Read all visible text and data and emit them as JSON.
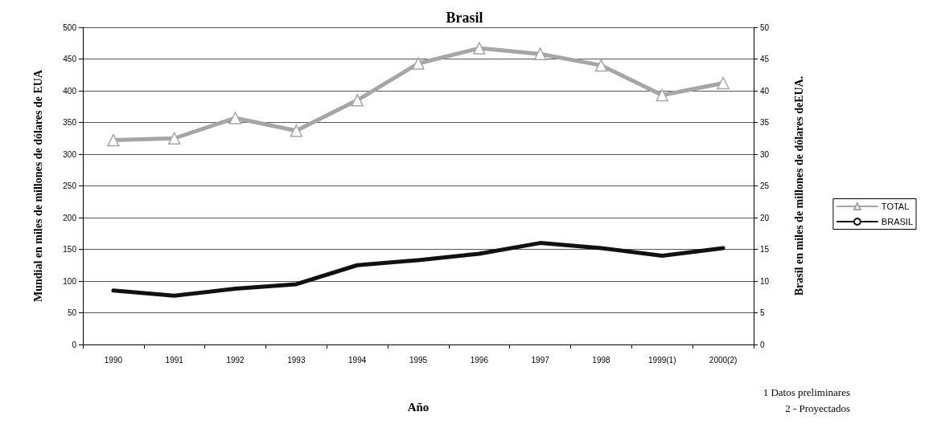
{
  "chart_data": {
    "type": "line",
    "title": "Brasil",
    "categories": [
      "1990",
      "1991",
      "1992",
      "1993",
      "1994",
      "1995",
      "1996",
      "1997",
      "1998",
      "1999(1)",
      "2000(2)"
    ],
    "series": [
      {
        "name": "TOTAL",
        "color": "#a6a6a6",
        "marker": "triangle",
        "values": [
          322,
          325,
          357,
          337,
          385,
          443,
          467,
          458,
          440,
          393,
          412
        ]
      },
      {
        "name": "BRASIL",
        "color": "#111111",
        "marker": "none",
        "axis": "y2",
        "values": [
          8.5,
          7.7,
          8.8,
          9.5,
          12.5,
          13.3,
          14.3,
          16.0,
          15.2,
          14.0,
          15.2
        ]
      }
    ],
    "xlabel": "Año",
    "ylabel": "Mundial en miles de millones de dólares de EUA",
    "y2label": "Brasil en miles de millones de dólares deEUA.",
    "ylim": [
      0,
      500
    ],
    "yticks": [
      0,
      50,
      100,
      150,
      200,
      250,
      300,
      350,
      400,
      450,
      500
    ],
    "y2lim": [
      0,
      50
    ],
    "y2ticks": [
      0,
      5,
      10,
      15,
      20,
      25,
      30,
      35,
      40,
      45,
      50
    ],
    "grid": "y",
    "legend": "right",
    "annotations": [
      "1 Datos preliminares",
      "2 - Proyectados"
    ]
  }
}
